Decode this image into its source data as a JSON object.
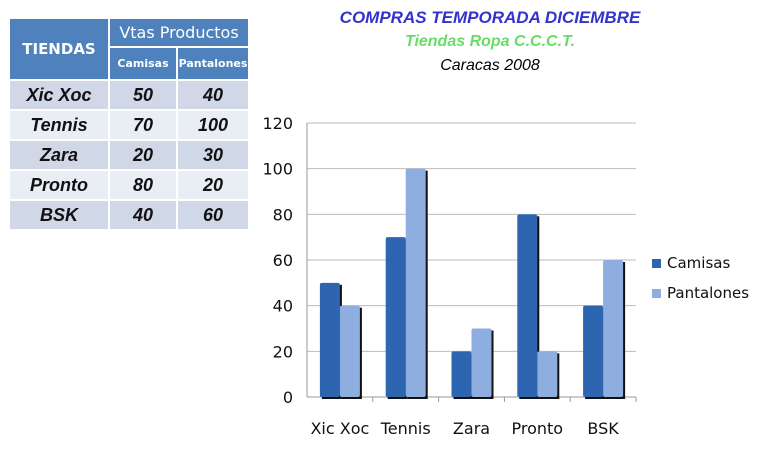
{
  "table": {
    "header_store": "TIENDAS",
    "header_group": "Vtas  Productos",
    "header_cols": [
      "Camisas",
      "Pantalones"
    ],
    "rows": [
      {
        "store": "Xic Xoc",
        "camisas": "50",
        "pantalones": "40"
      },
      {
        "store": "Tennis",
        "camisas": "70",
        "pantalones": "100"
      },
      {
        "store": "Zara",
        "camisas": "20",
        "pantalones": "30"
      },
      {
        "store": "Pronto",
        "camisas": "80",
        "pantalones": "20"
      },
      {
        "store": "BSK",
        "camisas": "40",
        "pantalones": "60"
      }
    ]
  },
  "chart_data": {
    "type": "bar",
    "title": "COMPRAS TEMPORADA DICIEMBRE",
    "subtitle": "Tiendas Ropa C.C.C.T.",
    "subtitle2": "Caracas 2008",
    "categories": [
      "Xic Xoc",
      "Tennis",
      "Zara",
      "Pronto",
      "BSK"
    ],
    "series": [
      {
        "name": "Camisas",
        "values": [
          50,
          70,
          20,
          80,
          40
        ],
        "color": "#2e65b0"
      },
      {
        "name": "Pantalones",
        "values": [
          40,
          100,
          30,
          20,
          60
        ],
        "color": "#8eaee0"
      }
    ],
    "ylim": [
      0,
      120
    ],
    "yticks": [
      "0",
      "20",
      "40",
      "60",
      "80",
      "100",
      "120"
    ],
    "grid": true,
    "legend": "right",
    "colors": {
      "title": "#3333cc",
      "subtitle": "#66dd66",
      "subtitle2": "#000000"
    }
  }
}
